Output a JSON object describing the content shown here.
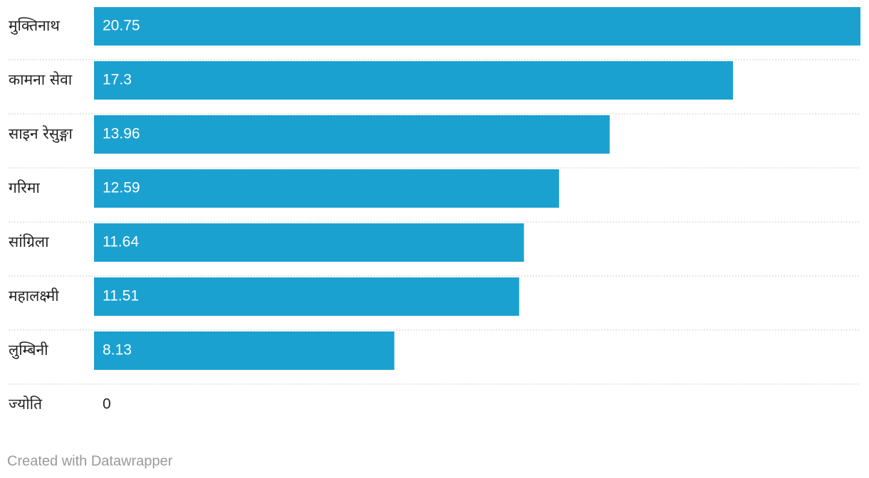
{
  "chart_data": {
    "type": "bar",
    "categories": [
      "मुक्तिनाथ",
      "कामना सेवा",
      "साइन रेसुङ्गा",
      "गरिमा",
      "सांग्रिला",
      "महालक्ष्मी",
      "लुम्बिनी",
      "ज्योति"
    ],
    "values": [
      20.75,
      17.3,
      13.96,
      12.59,
      11.64,
      11.51,
      8.13,
      0
    ],
    "color": "#1ba1d0",
    "credit": "Created with Datawrapper"
  }
}
